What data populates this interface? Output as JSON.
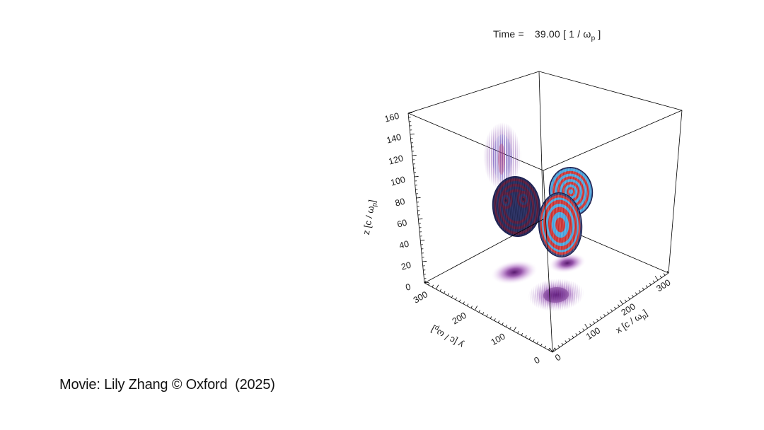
{
  "title": {
    "label": "Time =",
    "value": "39.00",
    "units_pre": " [ 1 / ω",
    "units_sub": "p",
    "units_post": " ]",
    "full": "Time = 39.00 [ 1 / ω_p ]"
  },
  "caption": "Movie: Lily Zhang © Oxford  (2025)",
  "chart_data": {
    "type": "3d-field",
    "title": "Time = 39.00 [ 1 / ω_p ]",
    "time": {
      "value": 39.0,
      "units": "1 / ω_p"
    },
    "axes": {
      "x": {
        "label": "x [c / ω_p]",
        "label_pre": "x [c / ω",
        "label_sub": "p",
        "label_post": "]",
        "min": 0,
        "max": 300,
        "ticks": [
          0,
          100,
          200,
          300
        ]
      },
      "y": {
        "label": "y [c / ω_p]",
        "label_pre": "y [c / ω",
        "label_sub": "p",
        "label_post": "]",
        "min": 0,
        "max": 300,
        "ticks": [
          0,
          100,
          200,
          300
        ]
      },
      "z": {
        "label": "z [c / ω_p]",
        "label_pre": "z [c / ω",
        "label_sub": "p",
        "label_post": "]",
        "min": 0,
        "max": 160,
        "ticks": [
          0,
          20,
          40,
          60,
          80,
          100,
          120,
          140,
          160
        ]
      }
    },
    "grid": false,
    "legend": false,
    "objects": [
      {
        "name": "laser-pulse-disc-left",
        "description": "tilted disc isosurface with concentric dark red / dark blue striped rings and two inner ring foci"
      },
      {
        "name": "laser-pulse-disc-back-right",
        "description": "tilted disc isosurface with bright red / blue concentric rings, blue core"
      },
      {
        "name": "laser-pulse-disc-front-right",
        "description": "tilted disc isosurface with bright red / blue concentric rings, red core"
      },
      {
        "name": "wall-projection",
        "description": "vertically striped purple intensity projection on the back-left wall"
      },
      {
        "name": "floor-projections",
        "description": "three diffuse purple intensity blobs projected on the floor, the front one striped"
      }
    ]
  },
  "colors": {
    "background": "#ffffff",
    "axis_line": "#000000",
    "text": "#1c1c1c",
    "ring_red": "#c92b2b",
    "ring_blue": "#3f9fdb",
    "ring_dark_red": "#6f2747",
    "ring_dark_blue": "#333a6e",
    "disc_edge": "#1d2050",
    "projection_purple": "#7d2c96"
  }
}
